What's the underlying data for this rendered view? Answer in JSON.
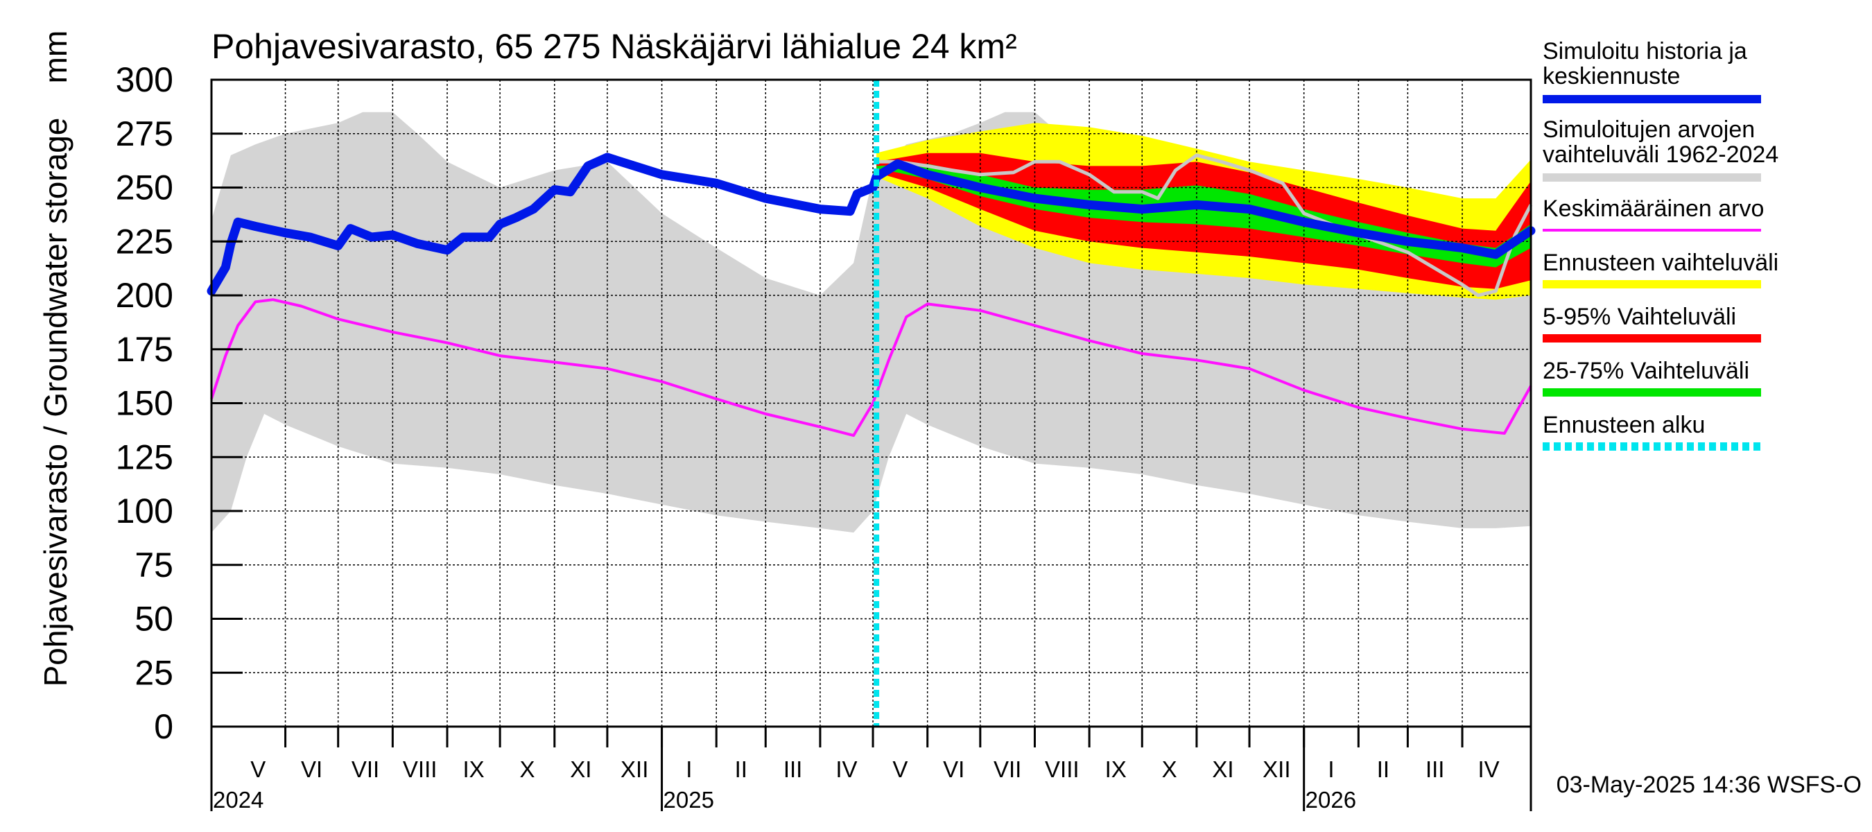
{
  "chart_data": {
    "type": "line",
    "title": "Pohjavesivarasto, 65 275 Näskäjärvi lähialue 24 km²",
    "ylabel": "Pohjavesivarasto / Groundwater storage",
    "yunit": "mm",
    "ylim": [
      0,
      300
    ],
    "yticks": [
      "0",
      "25",
      "50",
      "75",
      "100",
      "125",
      "150",
      "175",
      "200",
      "225",
      "250",
      "275",
      "300"
    ],
    "xlim": [
      "2024-04-20",
      "2026-05-10"
    ],
    "grid": true,
    "legend_position": "right",
    "forecast_start": "2025-05-03",
    "timestamp": "03-May-2025 14:36 WSFS-O",
    "colors": {
      "history": "#0018e8",
      "range_1962_2024": "#d4d4d4",
      "range_line": "#c8c8c8",
      "mean": "#ff10ff",
      "forecast_range": "#ffff00",
      "p5_95": "#ff0000",
      "p25_75": "#00e600",
      "forecast_start": "#00e5ee"
    },
    "months": [
      {
        "label": "V",
        "start": "2024-05-01",
        "end": "2024-06-01"
      },
      {
        "label": "VI",
        "start": "2024-06-01",
        "end": "2024-07-01"
      },
      {
        "label": "VII",
        "start": "2024-07-01",
        "end": "2024-08-01"
      },
      {
        "label": "VIII",
        "start": "2024-08-01",
        "end": "2024-09-01"
      },
      {
        "label": "IX",
        "start": "2024-09-01",
        "end": "2024-10-01"
      },
      {
        "label": "X",
        "start": "2024-10-01",
        "end": "2024-11-01"
      },
      {
        "label": "XI",
        "start": "2024-11-01",
        "end": "2024-12-01"
      },
      {
        "label": "XII",
        "start": "2024-12-01",
        "end": "2025-01-01"
      },
      {
        "label": "I",
        "start": "2025-01-01",
        "end": "2025-02-01"
      },
      {
        "label": "II",
        "start": "2025-02-01",
        "end": "2025-03-01"
      },
      {
        "label": "III",
        "start": "2025-03-01",
        "end": "2025-04-01"
      },
      {
        "label": "IV",
        "start": "2025-04-01",
        "end": "2025-05-01"
      },
      {
        "label": "V",
        "start": "2025-05-01",
        "end": "2025-06-01"
      },
      {
        "label": "VI",
        "start": "2025-06-01",
        "end": "2025-07-01"
      },
      {
        "label": "VII",
        "start": "2025-07-01",
        "end": "2025-08-01"
      },
      {
        "label": "VIII",
        "start": "2025-08-01",
        "end": "2025-09-01"
      },
      {
        "label": "IX",
        "start": "2025-09-01",
        "end": "2025-10-01"
      },
      {
        "label": "X",
        "start": "2025-10-01",
        "end": "2025-11-01"
      },
      {
        "label": "XI",
        "start": "2025-11-01",
        "end": "2025-12-01"
      },
      {
        "label": "XII",
        "start": "2025-12-01",
        "end": "2026-01-01"
      },
      {
        "label": "I",
        "start": "2026-01-01",
        "end": "2026-02-01"
      },
      {
        "label": "II",
        "start": "2026-02-01",
        "end": "2026-03-01"
      },
      {
        "label": "III",
        "start": "2026-03-01",
        "end": "2026-04-01"
      },
      {
        "label": "IV",
        "start": "2026-04-01",
        "end": "2026-05-01"
      }
    ],
    "years": [
      {
        "label": "2024",
        "date": "2024-04-20"
      },
      {
        "label": "2025",
        "date": "2025-01-01"
      },
      {
        "label": "2026",
        "date": "2026-01-01"
      }
    ],
    "legend": [
      {
        "label": "Simuloitu historia ja keskiennuste",
        "line1": "Simuloitu historia ja",
        "line2": "keskiennuste",
        "color": "#0018e8",
        "style": "thick"
      },
      {
        "label": "Simuloitujen arvojen vaihteluväli 1962-2024",
        "line1": "Simuloitujen arvojen",
        "line2": "vaihteluväli 1962-2024",
        "color": "#d4d4d4",
        "style": "thick"
      },
      {
        "label": "Keskimääräinen arvo",
        "line1": "Keskimääräinen arvo",
        "line2": "",
        "color": "#ff10ff",
        "style": "thin"
      },
      {
        "label": "Ennusteen vaihteluväli",
        "line1": "Ennusteen vaihteluväli",
        "line2": "",
        "color": "#ffff00",
        "style": "thick"
      },
      {
        "label": "5-95% Vaihteluväli",
        "line1": "5-95% Vaihteluväli",
        "line2": "",
        "color": "#ff0000",
        "style": "thick"
      },
      {
        "label": "25-75% Vaihteluväli",
        "line1": "25-75% Vaihteluväli",
        "line2": "",
        "color": "#00e600",
        "style": "thick"
      },
      {
        "label": "Ennusteen alku",
        "line1": "Ennusteen alku",
        "line2": "",
        "color": "#00e5ee",
        "style": "dashed"
      }
    ],
    "series": [
      {
        "name": "Simuloitu historia ja keskiennuste",
        "x": [
          "2024-04-20",
          "2024-04-28",
          "2024-05-01",
          "2024-05-05",
          "2024-05-15",
          "2024-06-01",
          "2024-06-15",
          "2024-07-01",
          "2024-07-08",
          "2024-07-20",
          "2024-08-01",
          "2024-08-15",
          "2024-09-01",
          "2024-09-10",
          "2024-09-25",
          "2024-10-01",
          "2024-10-10",
          "2024-10-20",
          "2024-11-01",
          "2024-11-10",
          "2024-11-20",
          "2024-12-01",
          "2025-01-01",
          "2025-02-01",
          "2025-03-01",
          "2025-04-01",
          "2025-04-18",
          "2025-04-22",
          "2025-05-01",
          "2025-05-03",
          "2025-05-15",
          "2025-06-01",
          "2025-07-01",
          "2025-08-01",
          "2025-09-01",
          "2025-10-01",
          "2025-11-01",
          "2025-12-01",
          "2026-01-01",
          "2026-02-01",
          "2026-03-01",
          "2026-04-01",
          "2026-04-20",
          "2026-05-10"
        ],
        "y": [
          202,
          213,
          224,
          234,
          232,
          229,
          227,
          223,
          231,
          227,
          228,
          224,
          221,
          227,
          227,
          233,
          236,
          240,
          249,
          248,
          260,
          264,
          256,
          252,
          245,
          240,
          239,
          247,
          250,
          255,
          261,
          256,
          250,
          245,
          242,
          240,
          242,
          240,
          234,
          229,
          225,
          222,
          219,
          230
        ]
      },
      {
        "name": "Keskimääräinen arvo",
        "x": [
          "2024-04-20",
          "2024-04-28",
          "2024-05-05",
          "2024-05-15",
          "2024-05-25",
          "2024-06-10",
          "2024-07-01",
          "2024-08-01",
          "2024-09-01",
          "2024-10-01",
          "2024-11-01",
          "2024-12-01",
          "2025-01-01",
          "2025-02-01",
          "2025-03-01",
          "2025-04-01",
          "2025-04-20",
          "2025-05-01",
          "2025-05-10",
          "2025-05-20",
          "2025-06-01",
          "2025-07-01",
          "2025-08-01",
          "2025-09-01",
          "2025-10-01",
          "2025-11-01",
          "2025-12-01",
          "2026-01-01",
          "2026-02-01",
          "2026-03-01",
          "2026-04-01",
          "2026-04-25",
          "2026-05-10"
        ],
        "y": [
          152,
          172,
          186,
          197,
          198,
          195,
          189,
          183,
          178,
          172,
          169,
          166,
          160,
          152,
          145,
          139,
          135,
          150,
          170,
          190,
          196,
          193,
          186,
          179,
          173,
          170,
          166,
          156,
          148,
          143,
          138,
          136,
          158
        ]
      },
      {
        "name": "Simuloitujen arvojen vaihteluväli 1962-2024 (max)",
        "x": [
          "2024-04-20",
          "2024-05-01",
          "2024-05-15",
          "2024-06-01",
          "2024-07-01",
          "2024-07-15",
          "2024-08-01",
          "2024-08-15",
          "2024-09-01",
          "2024-10-01",
          "2024-11-01",
          "2024-12-01",
          "2025-01-01",
          "2025-02-01",
          "2025-03-01",
          "2025-04-01",
          "2025-04-20",
          "2025-05-01",
          "2025-05-20",
          "2025-06-15",
          "2025-07-01",
          "2025-07-15",
          "2025-08-01",
          "2025-08-15",
          "2025-09-01",
          "2025-10-01",
          "2025-11-01",
          "2025-12-01",
          "2026-01-01",
          "2026-02-01",
          "2026-03-01",
          "2026-04-01",
          "2026-04-20",
          "2026-05-10"
        ],
        "y": [
          235,
          265,
          270,
          275,
          280,
          285,
          285,
          275,
          262,
          250,
          258,
          262,
          238,
          222,
          208,
          200,
          215,
          255,
          270,
          275,
          280,
          285,
          285,
          275,
          262,
          250,
          258,
          262,
          238,
          222,
          208,
          200,
          215,
          235
        ]
      },
      {
        "name": "Simuloitujen arvojen vaihteluväli 1962-2024 (min)",
        "x": [
          "2024-04-20",
          "2024-05-01",
          "2024-05-10",
          "2024-05-20",
          "2024-06-01",
          "2024-07-01",
          "2024-08-01",
          "2024-09-01",
          "2024-10-01",
          "2024-11-01",
          "2024-12-01",
          "2025-01-01",
          "2025-02-01",
          "2025-03-01",
          "2025-04-01",
          "2025-04-20",
          "2025-05-01",
          "2025-05-10",
          "2025-05-20",
          "2025-06-01",
          "2025-07-01",
          "2025-08-01",
          "2025-09-01",
          "2025-10-01",
          "2025-11-01",
          "2025-12-01",
          "2026-01-01",
          "2026-02-01",
          "2026-03-01",
          "2026-04-01",
          "2026-04-20",
          "2026-05-10"
        ],
        "y": [
          90,
          100,
          125,
          145,
          140,
          130,
          122,
          120,
          117,
          112,
          108,
          103,
          98,
          95,
          92,
          90,
          100,
          125,
          145,
          140,
          130,
          122,
          120,
          117,
          112,
          108,
          103,
          98,
          95,
          92,
          92,
          93
        ]
      },
      {
        "name": "Ennusteen vaihteluväli (max)",
        "x": [
          "2025-05-03",
          "2025-06-01",
          "2025-07-01",
          "2025-08-01",
          "2025-09-01",
          "2025-10-01",
          "2025-11-01",
          "2025-12-01",
          "2026-01-01",
          "2026-02-01",
          "2026-03-01",
          "2026-04-01",
          "2026-04-20",
          "2026-05-10"
        ],
        "y": [
          266,
          272,
          276,
          280,
          278,
          274,
          268,
          262,
          258,
          254,
          250,
          245,
          245,
          263
        ]
      },
      {
        "name": "Ennusteen vaihteluväli (min)",
        "x": [
          "2025-05-03",
          "2025-06-01",
          "2025-07-01",
          "2025-08-01",
          "2025-09-01",
          "2025-10-01",
          "2025-11-01",
          "2025-12-01",
          "2026-01-01",
          "2026-02-01",
          "2026-03-01",
          "2026-04-01",
          "2026-04-20",
          "2026-05-10"
        ],
        "y": [
          255,
          245,
          232,
          222,
          215,
          212,
          210,
          208,
          205,
          203,
          201,
          199,
          198,
          200
        ]
      },
      {
        "name": "5-95% Vaihteluväli (max)",
        "x": [
          "2025-05-03",
          "2025-06-01",
          "2025-07-01",
          "2025-08-01",
          "2025-09-01",
          "2025-10-01",
          "2025-11-01",
          "2025-12-01",
          "2026-01-01",
          "2026-02-01",
          "2026-03-01",
          "2026-04-01",
          "2026-04-20",
          "2026-05-10"
        ],
        "y": [
          262,
          266,
          266,
          262,
          260,
          260,
          262,
          257,
          250,
          243,
          237,
          231,
          230,
          253
        ]
      },
      {
        "name": "5-95% Vaihteluväli (min)",
        "x": [
          "2025-05-03",
          "2025-06-01",
          "2025-07-01",
          "2025-08-01",
          "2025-09-01",
          "2025-10-01",
          "2025-11-01",
          "2025-12-01",
          "2026-01-01",
          "2026-02-01",
          "2026-03-01",
          "2026-04-01",
          "2026-04-20",
          "2026-05-10"
        ],
        "y": [
          257,
          250,
          240,
          230,
          225,
          222,
          220,
          218,
          215,
          212,
          208,
          204,
          203,
          207
        ]
      },
      {
        "name": "25-75% Vaihteluväli (max)",
        "x": [
          "2025-05-03",
          "2025-06-01",
          "2025-07-01",
          "2025-08-01",
          "2025-09-01",
          "2025-10-01",
          "2025-11-01",
          "2025-12-01",
          "2026-01-01",
          "2026-02-01",
          "2026-03-01",
          "2026-04-01",
          "2026-04-20",
          "2026-05-10"
        ],
        "y": [
          260,
          261,
          256,
          250,
          249,
          249,
          251,
          247,
          240,
          234,
          229,
          224,
          222,
          233
        ]
      },
      {
        "name": "25-75% Vaihteluväli (min)",
        "x": [
          "2025-05-03",
          "2025-06-01",
          "2025-07-01",
          "2025-08-01",
          "2025-09-01",
          "2025-10-01",
          "2025-11-01",
          "2025-12-01",
          "2026-01-01",
          "2026-02-01",
          "2026-03-01",
          "2026-04-01",
          "2026-04-20",
          "2026-05-10"
        ],
        "y": [
          259,
          254,
          246,
          240,
          236,
          234,
          233,
          231,
          227,
          223,
          219,
          215,
          213,
          222
        ]
      },
      {
        "name": "Simuloitujen arvojen vaihteluväli 1962-2024 (line)",
        "x": [
          "2025-05-03",
          "2025-05-15",
          "2025-06-01",
          "2025-06-15",
          "2025-07-01",
          "2025-07-20",
          "2025-08-01",
          "2025-08-15",
          "2025-09-01",
          "2025-09-15",
          "2025-10-01",
          "2025-10-10",
          "2025-10-20",
          "2025-11-01",
          "2025-11-15",
          "2025-12-01",
          "2025-12-20",
          "2026-01-01",
          "2026-02-01",
          "2026-03-01",
          "2026-04-01",
          "2026-04-10",
          "2026-04-20",
          "2026-05-01",
          "2026-05-10"
        ],
        "y": [
          262,
          262,
          260,
          258,
          256,
          257,
          262,
          262,
          256,
          248,
          248,
          245,
          258,
          265,
          262,
          258,
          252,
          238,
          228,
          220,
          205,
          200,
          202,
          228,
          242
        ]
      }
    ]
  }
}
